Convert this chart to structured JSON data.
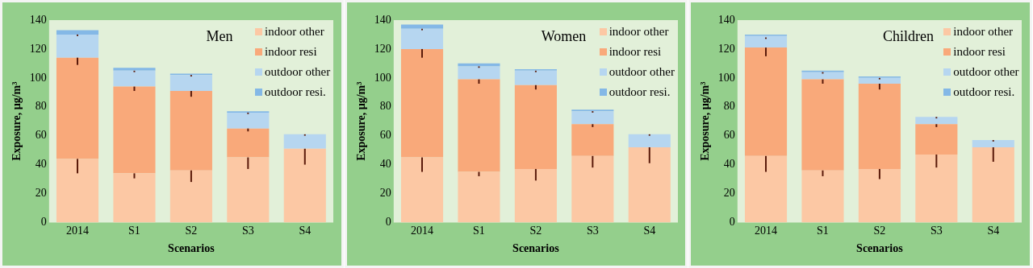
{
  "chart_data": [
    {
      "type": "bar",
      "title": "Men",
      "xlabel": "Scenarios",
      "ylabel": "Exposure, µg/m³",
      "categories": [
        "2014",
        "S1",
        "S2",
        "S3",
        "S4"
      ],
      "stacked": true,
      "legend": "top right",
      "grid": false,
      "ylim": [
        0,
        140
      ],
      "yticks": [
        0,
        20,
        40,
        60,
        80,
        100,
        120,
        140
      ],
      "series": [
        {
          "name": "indoor other",
          "color": "#fcc8a4",
          "values": [
            44,
            34,
            36,
            45,
            51
          ],
          "errors": [
            [
              34,
              44
            ],
            [
              30.5,
              34
            ],
            [
              28,
              36
            ],
            [
              37,
              45
            ],
            [
              40,
              51
            ]
          ]
        },
        {
          "name": "indoor resi",
          "color": "#f9a97a",
          "values": [
            70,
            60,
            55,
            20,
            0
          ],
          "errors": [
            [
              109,
              114
            ],
            [
              91,
              94
            ],
            [
              87,
              91
            ],
            [
              63,
              65
            ],
            null
          ]
        },
        {
          "name": "outdoor other",
          "color": "#b6d6f0",
          "values": [
            16,
            11,
            11,
            11,
            10
          ],
          "errors": [
            [
              129,
              130
            ],
            [
              104,
              105
            ],
            [
              101,
              102
            ],
            [
              75,
              76
            ],
            [
              60,
              61
            ]
          ]
        },
        {
          "name": "outdoor resi.",
          "color": "#84b8e6",
          "values": [
            3,
            2,
            1,
            1,
            0
          ]
        }
      ]
    },
    {
      "type": "bar",
      "title": "Women",
      "xlabel": "Scenarios",
      "ylabel": "Exposure, µg/m³",
      "categories": [
        "2014",
        "S1",
        "S2",
        "S3",
        "S4"
      ],
      "stacked": true,
      "legend": "top right",
      "grid": false,
      "ylim": [
        0,
        140
      ],
      "yticks": [
        0,
        20,
        40,
        60,
        80,
        100,
        120,
        140
      ],
      "series": [
        {
          "name": "indoor other",
          "color": "#fcc8a4",
          "values": [
            45,
            35,
            37,
            46,
            52
          ],
          "errors": [
            [
              35,
              45
            ],
            [
              32,
              35
            ],
            [
              29,
              37
            ],
            [
              38,
              46
            ],
            [
              41,
              52
            ]
          ]
        },
        {
          "name": "indoor resi",
          "color": "#f9a97a",
          "values": [
            75,
            64,
            58,
            22,
            0
          ],
          "errors": [
            [
              114,
              120
            ],
            [
              96,
              99
            ],
            [
              92,
              95
            ],
            [
              66,
              68
            ],
            null
          ]
        },
        {
          "name": "outdoor other",
          "color": "#b6d6f0",
          "values": [
            14,
            9,
            10,
            9,
            9
          ],
          "errors": [
            [
              133,
              134
            ],
            [
              107,
              108
            ],
            [
              104,
              105
            ],
            [
              76,
              77
            ],
            [
              60,
              61
            ]
          ]
        },
        {
          "name": "outdoor resi.",
          "color": "#84b8e6",
          "values": [
            3,
            2,
            1,
            1,
            0
          ]
        }
      ]
    },
    {
      "type": "bar",
      "title": "Children",
      "xlabel": "Scenarios",
      "ylabel": "Exposure, µg/m³",
      "categories": [
        "2014",
        "S1",
        "S2",
        "S3",
        "S4"
      ],
      "stacked": true,
      "legend": "top right",
      "grid": false,
      "ylim": [
        0,
        140
      ],
      "yticks": [
        0,
        20,
        40,
        60,
        80,
        100,
        120,
        140
      ],
      "series": [
        {
          "name": "indoor other",
          "color": "#fcc8a4",
          "values": [
            46,
            36,
            37,
            47,
            52
          ],
          "errors": [
            [
              35,
              46
            ],
            [
              32,
              36
            ],
            [
              30,
              37
            ],
            [
              38,
              47
            ],
            [
              42,
              52
            ]
          ]
        },
        {
          "name": "indoor resi",
          "color": "#f9a97a",
          "values": [
            75,
            63,
            59,
            21,
            0
          ],
          "errors": [
            [
              115,
              121
            ],
            [
              96,
              99
            ],
            [
              92,
              96
            ],
            [
              66,
              68
            ],
            null
          ]
        },
        {
          "name": "outdoor other",
          "color": "#b6d6f0",
          "values": [
            8,
            5,
            4,
            5,
            5
          ],
          "errors": [
            [
              127,
              128
            ],
            [
              103,
              104
            ],
            [
              99,
              100
            ],
            [
              72,
              73
            ],
            [
              56,
              57
            ]
          ]
        },
        {
          "name": "outdoor resi.",
          "color": "#84b8e6",
          "values": [
            1,
            1,
            1,
            0,
            0
          ]
        }
      ]
    }
  ]
}
